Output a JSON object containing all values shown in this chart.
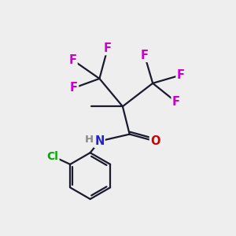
{
  "background_color": "#eeeeee",
  "atom_colors": {
    "F": "#cc00cc",
    "N": "#2222cc",
    "O": "#cc0000",
    "Cl": "#00aa00",
    "C": "#1a1a2e",
    "H": "#888888"
  },
  "bond_color": "#1a1a2e",
  "bond_width": 1.6,
  "font_size_atom": 10.5,
  "figsize": [
    3.0,
    3.0
  ],
  "dpi": 100
}
